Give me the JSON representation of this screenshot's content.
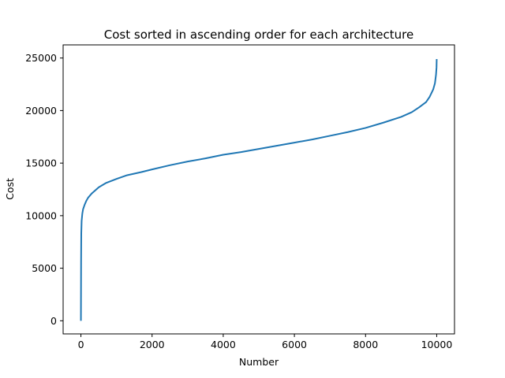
{
  "chart_data": {
    "type": "line",
    "title": "Cost sorted in ascending order for each architecture",
    "xlabel": "Number",
    "ylabel": "Cost",
    "xlim": [
      -500,
      10500
    ],
    "ylim": [
      -1250,
      26250
    ],
    "xticks": [
      0,
      2000,
      4000,
      6000,
      8000,
      10000
    ],
    "yticks": [
      0,
      5000,
      10000,
      15000,
      20000,
      25000
    ],
    "xtick_labels": [
      "0",
      "2000",
      "4000",
      "6000",
      "8000",
      "10000"
    ],
    "ytick_labels": [
      "0",
      "5000",
      "10000",
      "15000",
      "20000",
      "25000"
    ],
    "grid": false,
    "series": [
      {
        "color": "#1f77b4",
        "x": [
          0,
          5,
          10,
          20,
          40,
          60,
          100,
          150,
          200,
          300,
          400,
          500,
          700,
          1000,
          1300,
          1700,
          2000,
          2500,
          3000,
          3500,
          4000,
          4500,
          5000,
          5500,
          6000,
          6500,
          7000,
          7500,
          8000,
          8500,
          9000,
          9300,
          9500,
          9700,
          9800,
          9900,
          9950,
          9980,
          9995,
          10000
        ],
        "y": [
          0,
          5500,
          8300,
          9500,
          10200,
          10600,
          11000,
          11400,
          11700,
          12100,
          12400,
          12700,
          13100,
          13500,
          13850,
          14150,
          14400,
          14800,
          15150,
          15450,
          15800,
          16050,
          16350,
          16650,
          16950,
          17250,
          17600,
          17950,
          18350,
          18850,
          19400,
          19850,
          20300,
          20800,
          21300,
          22000,
          22600,
          23400,
          24100,
          24900
        ]
      }
    ]
  }
}
